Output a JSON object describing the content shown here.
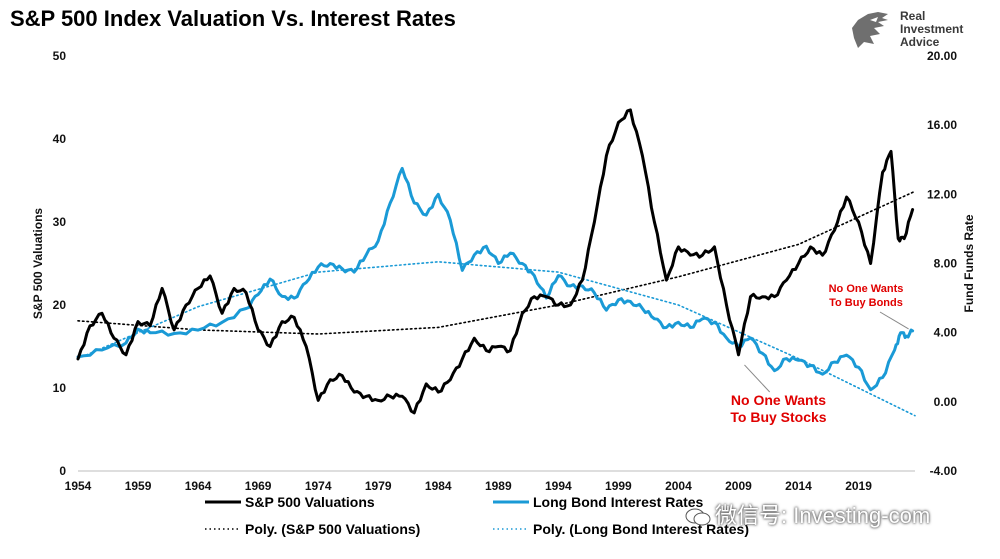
{
  "title": "S&P 500 Index Valuation Vs. Interest Rates",
  "brand": {
    "line1": "Real",
    "line2": "Investment",
    "line3": "Advice"
  },
  "watermark": "微信号: Investing-com",
  "colors": {
    "sp500": "#000000",
    "bond": "#1a9ad6",
    "poly_sp500": "#000000",
    "poly_bond": "#1a9ad6",
    "annotation": "#e00000"
  },
  "chart_data": {
    "type": "line",
    "title": "S&P 500 Index Valuation Vs. Interest Rates",
    "xlabel": "",
    "ylabel": "S&P 500 Valuations",
    "y2label": "Fund Funds Rate",
    "x_ticks": [
      "1954",
      "1959",
      "1964",
      "1969",
      "1974",
      "1979",
      "1984",
      "1989",
      "1994",
      "1999",
      "2004",
      "2009",
      "2014",
      "2019"
    ],
    "xlim": [
      1954,
      2023.7
    ],
    "ylim": [
      0,
      50
    ],
    "y_ticks": [
      "0",
      "10",
      "20",
      "30",
      "40",
      "50"
    ],
    "y2lim": [
      -4,
      20
    ],
    "y2_ticks": [
      "-4.00",
      "0.00",
      "4.00",
      "8.00",
      "12.00",
      "16.00",
      "20.00"
    ],
    "grid": false,
    "legend_position": "bottom",
    "series": [
      {
        "name": "S&P 500 Valuations",
        "axis": "left",
        "style": "solid",
        "points": [
          [
            1954,
            13.5
          ],
          [
            1955,
            17.5
          ],
          [
            1956,
            19
          ],
          [
            1957,
            16
          ],
          [
            1958,
            14
          ],
          [
            1959,
            18
          ],
          [
            1960,
            17.5
          ],
          [
            1961,
            22
          ],
          [
            1962,
            17
          ],
          [
            1963,
            20
          ],
          [
            1964,
            22
          ],
          [
            1965,
            23.5
          ],
          [
            1966,
            19
          ],
          [
            1967,
            22
          ],
          [
            1968,
            21.5
          ],
          [
            1969,
            17
          ],
          [
            1970,
            15
          ],
          [
            1971,
            18
          ],
          [
            1972,
            18.5
          ],
          [
            1973,
            15
          ],
          [
            1974,
            8.5
          ],
          [
            1975,
            11
          ],
          [
            1976,
            11.5
          ],
          [
            1977,
            9.5
          ],
          [
            1978,
            9
          ],
          [
            1979,
            8.5
          ],
          [
            1980,
            9
          ],
          [
            1981,
            9
          ],
          [
            1982,
            7
          ],
          [
            1983,
            10.5
          ],
          [
            1984,
            9.5
          ],
          [
            1985,
            11
          ],
          [
            1986,
            13.5
          ],
          [
            1987,
            16
          ],
          [
            1988,
            14.5
          ],
          [
            1989,
            15
          ],
          [
            1990,
            14.5
          ],
          [
            1991,
            19
          ],
          [
            1992,
            21
          ],
          [
            1993,
            21
          ],
          [
            1994,
            20
          ],
          [
            1995,
            20
          ],
          [
            1996,
            23
          ],
          [
            1997,
            30
          ],
          [
            1998,
            38
          ],
          [
            1999,
            42
          ],
          [
            2000,
            43.5
          ],
          [
            2001,
            38
          ],
          [
            2002,
            30
          ],
          [
            2003,
            23
          ],
          [
            2004,
            27
          ],
          [
            2005,
            26
          ],
          [
            2006,
            26
          ],
          [
            2007,
            27
          ],
          [
            2008,
            20
          ],
          [
            2009,
            14
          ],
          [
            2010,
            21
          ],
          [
            2011,
            21
          ],
          [
            2012,
            21
          ],
          [
            2013,
            23
          ],
          [
            2014,
            25
          ],
          [
            2015,
            27
          ],
          [
            2016,
            26
          ],
          [
            2017,
            29
          ],
          [
            2018,
            33
          ],
          [
            2019,
            30
          ],
          [
            2020,
            25
          ],
          [
            2021,
            36
          ],
          [
            2021.7,
            38.5
          ],
          [
            2022.3,
            28
          ],
          [
            2022.8,
            28
          ],
          [
            2023.5,
            31.5
          ]
        ]
      },
      {
        "name": "Long Bond Interest Rates",
        "axis": "right",
        "style": "solid",
        "points": [
          [
            1954,
            2.6
          ],
          [
            1956,
            3.0
          ],
          [
            1958,
            3.4
          ],
          [
            1959,
            4.2
          ],
          [
            1960,
            4.0
          ],
          [
            1962,
            3.95
          ],
          [
            1964,
            4.15
          ],
          [
            1966,
            4.6
          ],
          [
            1968,
            5.4
          ],
          [
            1969,
            6.2
          ],
          [
            1970,
            7.1
          ],
          [
            1971,
            6.1
          ],
          [
            1972,
            6.0
          ],
          [
            1973,
            6.9
          ],
          [
            1974,
            7.8
          ],
          [
            1975,
            8.0
          ],
          [
            1976,
            7.7
          ],
          [
            1977,
            7.5
          ],
          [
            1978,
            8.5
          ],
          [
            1979,
            9.3
          ],
          [
            1980,
            11.5
          ],
          [
            1981,
            13.5
          ],
          [
            1982,
            11.5
          ],
          [
            1983,
            10.8
          ],
          [
            1984,
            12.0
          ],
          [
            1985,
            10.5
          ],
          [
            1986,
            7.6
          ],
          [
            1987,
            8.5
          ],
          [
            1988,
            9.0
          ],
          [
            1989,
            8.0
          ],
          [
            1990,
            8.6
          ],
          [
            1991,
            8.0
          ],
          [
            1992,
            7.3
          ],
          [
            1993,
            6.0
          ],
          [
            1994,
            7.3
          ],
          [
            1995,
            6.7
          ],
          [
            1996,
            6.7
          ],
          [
            1997,
            6.3
          ],
          [
            1998,
            5.3
          ],
          [
            1999,
            5.9
          ],
          [
            2000,
            5.8
          ],
          [
            2001,
            5.4
          ],
          [
            2002,
            4.8
          ],
          [
            2003,
            4.3
          ],
          [
            2004,
            4.6
          ],
          [
            2005,
            4.3
          ],
          [
            2006,
            4.8
          ],
          [
            2007,
            4.6
          ],
          [
            2008,
            3.7
          ],
          [
            2009,
            3.2
          ],
          [
            2010,
            3.7
          ],
          [
            2011,
            2.8
          ],
          [
            2012,
            1.8
          ],
          [
            2013,
            2.5
          ],
          [
            2014,
            2.4
          ],
          [
            2015,
            2.1
          ],
          [
            2016,
            1.6
          ],
          [
            2017,
            2.3
          ],
          [
            2018,
            2.7
          ],
          [
            2019,
            2.0
          ],
          [
            2020,
            0.7
          ],
          [
            2021,
            1.4
          ],
          [
            2022,
            3.0
          ],
          [
            2022.5,
            4.0
          ],
          [
            2023,
            3.8
          ],
          [
            2023.5,
            4.1
          ]
        ]
      },
      {
        "name": "Poly. (S&P 500 Valuations)",
        "axis": "left",
        "style": "dotted",
        "points": [
          [
            1954,
            18.1
          ],
          [
            1964,
            17.0
          ],
          [
            1974,
            16.5
          ],
          [
            1984,
            17.3
          ],
          [
            1994,
            20.0
          ],
          [
            2004,
            23.4
          ],
          [
            2014,
            27.3
          ],
          [
            2023.7,
            33.7
          ]
        ]
      },
      {
        "name": "Poly. (Long Bond Interest Rates)",
        "axis": "right",
        "style": "dotted",
        "points": [
          [
            1954,
            2.5
          ],
          [
            1964,
            5.5
          ],
          [
            1974,
            7.5
          ],
          [
            1984,
            8.1
          ],
          [
            1994,
            7.5
          ],
          [
            2004,
            5.6
          ],
          [
            2014,
            2.5
          ],
          [
            2023.7,
            -0.8
          ]
        ]
      }
    ],
    "annotations": [
      {
        "text1": "No One Wants",
        "text2": "To Buy Stocks",
        "at": [
          2009,
          13.5
        ]
      },
      {
        "text1": "No One Wants",
        "text2": "To Buy Bonds",
        "at": [
          2023.5,
          4.1
        ]
      }
    ]
  }
}
